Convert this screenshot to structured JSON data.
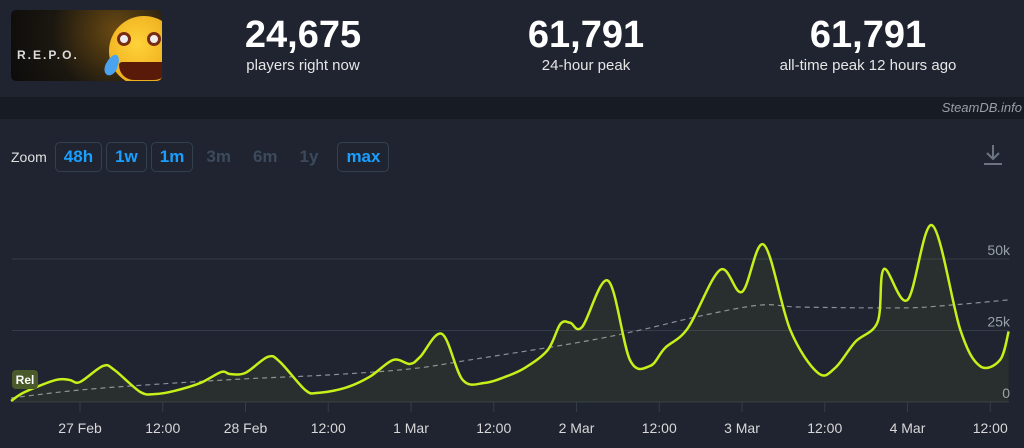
{
  "game": {
    "logo_text": "R.E.P.O."
  },
  "stats": [
    {
      "value": "24,675",
      "label": "players right now"
    },
    {
      "value": "61,791",
      "label": "24-hour peak"
    },
    {
      "value": "61,791",
      "label": "all-time peak 12 hours ago"
    }
  ],
  "watermark": "SteamDB.info",
  "zoom": {
    "label": "Zoom",
    "buttons": [
      {
        "label": "48h",
        "enabled": true
      },
      {
        "label": "1w",
        "enabled": true
      },
      {
        "label": "1m",
        "enabled": true
      },
      {
        "label": "3m",
        "enabled": false
      },
      {
        "label": "6m",
        "enabled": false
      },
      {
        "label": "1y",
        "enabled": false
      },
      {
        "label": "max",
        "enabled": true
      }
    ],
    "download_icon": "download-icon"
  },
  "chart_data": {
    "type": "line",
    "colors": {
      "players": "#c6f01a",
      "average": "#8a8f98",
      "grid": "#353c49",
      "flag": "#4a5a2a"
    },
    "flag_label": "Rel",
    "x_ticks": [
      "27 Feb",
      "12:00",
      "28 Feb",
      "12:00",
      "1 Mar",
      "12:00",
      "2 Mar",
      "12:00",
      "3 Mar",
      "12:00",
      "4 Mar",
      "12:00"
    ],
    "x_tick_times": [
      "27 Feb 00:00",
      "27 Feb 12:00",
      "28 Feb 00:00",
      "28 Feb 12:00",
      "1 Mar 00:00",
      "1 Mar 12:00",
      "2 Mar 00:00",
      "2 Mar 12:00",
      "3 Mar 00:00",
      "3 Mar 12:00",
      "4 Mar 00:00",
      "4 Mar 12:00"
    ],
    "y_ticks": [
      "0",
      "25k",
      "50k"
    ],
    "y_tick_values": [
      0,
      25000,
      50000
    ],
    "ylim": [
      0,
      50000
    ],
    "grid": true,
    "series": [
      {
        "key": "players",
        "points": [
          [
            "26 Feb 14:00",
            350
          ],
          [
            "26 Feb 16:00",
            3500
          ],
          [
            "26 Feb 20:30",
            7700
          ],
          [
            "26 Feb 22:30",
            7700
          ],
          [
            "27 Feb 00:00",
            7000
          ],
          [
            "27 Feb 03:20",
            12600
          ],
          [
            "27 Feb 05:00",
            11200
          ],
          [
            "27 Feb 08:45",
            3500
          ],
          [
            "27 Feb 11:00",
            2800
          ],
          [
            "27 Feb 13:45",
            3900
          ],
          [
            "27 Feb 17:30",
            6700
          ],
          [
            "27 Feb 20:30",
            10500
          ],
          [
            "27 Feb 21:45",
            9800
          ],
          [
            "28 Feb 00:00",
            10200
          ],
          [
            "28 Feb 03:15",
            15800
          ],
          [
            "28 Feb 05:00",
            14000
          ],
          [
            "28 Feb 08:40",
            4200
          ],
          [
            "28 Feb 10:30",
            3200
          ],
          [
            "28 Feb 14:25",
            4900
          ],
          [
            "28 Feb 18:00",
            8800
          ],
          [
            "28 Feb 21:25",
            14700
          ],
          [
            "28 Feb 23:50",
            13300
          ],
          [
            "1 Mar 01:20",
            15800
          ],
          [
            "1 Mar 04:30",
            23800
          ],
          [
            "1 Mar 07:30",
            7700
          ],
          [
            "1 Mar 10:45",
            6700
          ],
          [
            "1 Mar 13:40",
            8800
          ],
          [
            "1 Mar 16:30",
            11900
          ],
          [
            "1 Mar 19:50",
            18200
          ],
          [
            "1 Mar 21:40",
            27300
          ],
          [
            "1 Mar 23:05",
            27700
          ],
          [
            "2 Mar 00:50",
            26300
          ],
          [
            "2 Mar 04:35",
            42400
          ],
          [
            "2 Mar 07:45",
            14700
          ],
          [
            "2 Mar 10:40",
            12600
          ],
          [
            "2 Mar 12:50",
            18900
          ],
          [
            "2 Mar 16:10",
            25900
          ],
          [
            "2 Mar 20:50",
            46200
          ],
          [
            "3 Mar 00:00",
            38500
          ],
          [
            "3 Mar 03:10",
            55000
          ],
          [
            "3 Mar 07:00",
            25200
          ],
          [
            "3 Mar 11:00",
            10200
          ],
          [
            "3 Mar 13:30",
            11900
          ],
          [
            "3 Mar 16:25",
            21000
          ],
          [
            "3 Mar 19:40",
            28000
          ],
          [
            "3 Mar 20:35",
            46500
          ],
          [
            "4 Mar 00:00",
            35700
          ],
          [
            "4 Mar 03:35",
            61791
          ],
          [
            "4 Mar 07:40",
            25200
          ],
          [
            "4 Mar 10:30",
            12600
          ],
          [
            "4 Mar 13:25",
            14700
          ],
          [
            "4 Mar 14:40",
            24675
          ]
        ]
      },
      {
        "key": "average",
        "dashed": true,
        "points": [
          [
            "26 Feb 14:00",
            1400
          ],
          [
            "27 Feb 00:00",
            4200
          ],
          [
            "27 Feb 11:40",
            6300
          ],
          [
            "28 Feb 00:00",
            8100
          ],
          [
            "28 Feb 12:20",
            9500
          ],
          [
            "1 Mar 00:00",
            11600
          ],
          [
            "1 Mar 08:30",
            14700
          ],
          [
            "2 Mar 00:00",
            20700
          ],
          [
            "2 Mar 09:20",
            25200
          ],
          [
            "2 Mar 18:00",
            30100
          ],
          [
            "3 Mar 02:40",
            33900
          ],
          [
            "3 Mar 08:30",
            33200
          ],
          [
            "3 Mar 23:00",
            32900
          ],
          [
            "4 Mar 04:50",
            33600
          ],
          [
            "4 Mar 14:40",
            35700
          ]
        ]
      }
    ]
  }
}
